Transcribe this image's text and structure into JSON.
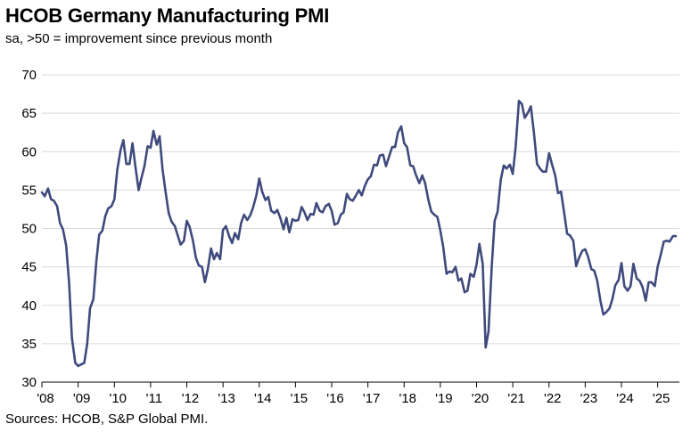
{
  "chart_data": {
    "type": "line",
    "title": "HCOB Germany Manufacturing PMI",
    "subtitle": "sa, >50 = improvement since previous month",
    "source": "Sources: HCOB, S&P Global PMI.",
    "ylim": [
      30,
      70
    ],
    "yticks": [
      30,
      35,
      40,
      45,
      50,
      55,
      60,
      65,
      70
    ],
    "xlim": [
      2008.0,
      2025.6
    ],
    "xticks": [
      {
        "value": 2008,
        "label": "'08"
      },
      {
        "value": 2009,
        "label": "'09"
      },
      {
        "value": 2010,
        "label": "'10"
      },
      {
        "value": 2011,
        "label": "'11"
      },
      {
        "value": 2012,
        "label": "'12"
      },
      {
        "value": 2013,
        "label": "'13"
      },
      {
        "value": 2014,
        "label": "'14"
      },
      {
        "value": 2015,
        "label": "'15"
      },
      {
        "value": 2016,
        "label": "'16"
      },
      {
        "value": 2017,
        "label": "'17"
      },
      {
        "value": 2018,
        "label": "'18"
      },
      {
        "value": 2019,
        "label": "'19"
      },
      {
        "value": 2020,
        "label": "'20"
      },
      {
        "value": 2021,
        "label": "'21"
      },
      {
        "value": 2022,
        "label": "'22"
      },
      {
        "value": 2023,
        "label": "'23"
      },
      {
        "value": 2024,
        "label": "'24"
      },
      {
        "value": 2025,
        "label": "'25"
      }
    ],
    "grid": true,
    "color": "#3f4a7d",
    "series": [
      {
        "x": [
          2008.0,
          2008.08,
          2008.17,
          2008.25,
          2008.33,
          2008.42,
          2008.5,
          2008.58,
          2008.67,
          2008.75,
          2008.83,
          2008.92,
          2009.0,
          2009.08,
          2009.17,
          2009.25,
          2009.33,
          2009.42,
          2009.5,
          2009.58,
          2009.67,
          2009.75,
          2009.83,
          2009.92,
          2010.0,
          2010.08,
          2010.17,
          2010.25,
          2010.33,
          2010.42,
          2010.5,
          2010.58,
          2010.67,
          2010.75,
          2010.83,
          2010.92,
          2011.0,
          2011.08,
          2011.17,
          2011.25,
          2011.33,
          2011.42,
          2011.5,
          2011.58,
          2011.67,
          2011.75,
          2011.83,
          2011.92,
          2012.0,
          2012.08,
          2012.17,
          2012.25,
          2012.33,
          2012.42,
          2012.5,
          2012.58,
          2012.67,
          2012.75,
          2012.83,
          2012.92,
          2013.0,
          2013.08,
          2013.17,
          2013.25,
          2013.33,
          2013.42,
          2013.5,
          2013.58,
          2013.67,
          2013.75,
          2013.83,
          2013.92,
          2014.0,
          2014.08,
          2014.17,
          2014.25,
          2014.33,
          2014.42,
          2014.5,
          2014.58,
          2014.67,
          2014.75,
          2014.83,
          2014.92,
          2015.0,
          2015.08,
          2015.17,
          2015.25,
          2015.33,
          2015.42,
          2015.5,
          2015.58,
          2015.67,
          2015.75,
          2015.83,
          2015.92,
          2016.0,
          2016.08,
          2016.17,
          2016.25,
          2016.33,
          2016.42,
          2016.5,
          2016.58,
          2016.67,
          2016.75,
          2016.83,
          2016.92,
          2017.0,
          2017.08,
          2017.17,
          2017.25,
          2017.33,
          2017.42,
          2017.5,
          2017.58,
          2017.67,
          2017.75,
          2017.83,
          2017.92,
          2018.0,
          2018.08,
          2018.17,
          2018.25,
          2018.33,
          2018.42,
          2018.5,
          2018.58,
          2018.67,
          2018.75,
          2018.83,
          2018.92,
          2019.0,
          2019.08,
          2019.17,
          2019.25,
          2019.33,
          2019.42,
          2019.5,
          2019.58,
          2019.67,
          2019.75,
          2019.83,
          2019.92,
          2020.0,
          2020.08,
          2020.17,
          2020.25,
          2020.33,
          2020.42,
          2020.5,
          2020.58,
          2020.67,
          2020.75,
          2020.83,
          2020.92,
          2021.0,
          2021.08,
          2021.17,
          2021.25,
          2021.33,
          2021.42,
          2021.5,
          2021.58,
          2021.67,
          2021.75,
          2021.83,
          2021.92,
          2022.0,
          2022.08,
          2022.17,
          2022.25,
          2022.33,
          2022.42,
          2022.5,
          2022.58,
          2022.67,
          2022.75,
          2022.83,
          2022.92,
          2023.0,
          2023.08,
          2023.17,
          2023.25,
          2023.33,
          2023.42,
          2023.5,
          2023.58,
          2023.67,
          2023.75,
          2023.83,
          2023.92,
          2024.0,
          2024.08,
          2024.17,
          2024.25,
          2024.33,
          2024.42,
          2024.5,
          2024.58,
          2024.67,
          2024.75,
          2024.83,
          2024.92,
          2025.0,
          2025.08,
          2025.17,
          2025.25,
          2025.33,
          2025.42,
          2025.5
        ],
        "values": [
          54.7,
          54.2,
          55.2,
          53.8,
          53.6,
          52.9,
          50.7,
          49.9,
          47.8,
          42.9,
          35.7,
          32.5,
          32.1,
          32.3,
          32.5,
          35.0,
          39.6,
          40.8,
          45.5,
          49.2,
          49.7,
          51.6,
          52.6,
          52.9,
          53.8,
          57.6,
          60.2,
          61.5,
          58.4,
          58.4,
          61.1,
          58.1,
          55.0,
          56.6,
          58.1,
          60.7,
          60.5,
          62.7,
          60.9,
          62.0,
          57.7,
          54.6,
          52.0,
          50.9,
          50.3,
          49.1,
          47.9,
          48.4,
          51.0,
          50.2,
          48.4,
          46.2,
          45.2,
          45.0,
          43.0,
          44.7,
          47.4,
          46.0,
          46.8,
          46.0,
          49.8,
          50.3,
          49.0,
          48.1,
          49.4,
          48.6,
          50.7,
          51.8,
          51.1,
          51.7,
          52.7,
          54.3,
          56.5,
          54.8,
          53.7,
          54.1,
          52.3,
          52.0,
          52.4,
          51.4,
          49.9,
          51.4,
          49.5,
          51.2,
          51.0,
          51.1,
          52.8,
          52.1,
          51.1,
          51.9,
          51.8,
          53.3,
          52.3,
          52.1,
          52.9,
          53.2,
          52.3,
          50.5,
          50.7,
          51.8,
          52.1,
          54.5,
          53.8,
          53.6,
          54.3,
          55.0,
          54.3,
          55.6,
          56.4,
          56.8,
          58.3,
          58.2,
          59.5,
          59.6,
          58.1,
          59.3,
          60.6,
          60.6,
          62.5,
          63.3,
          61.1,
          60.6,
          58.2,
          58.1,
          56.9,
          55.9,
          56.9,
          55.9,
          53.7,
          52.2,
          51.8,
          51.5,
          49.7,
          47.6,
          44.1,
          44.4,
          44.3,
          45.0,
          43.2,
          43.5,
          41.7,
          41.9,
          44.1,
          43.7,
          45.3,
          48.0,
          45.4,
          34.5,
          36.6,
          45.2,
          51.0,
          52.2,
          56.4,
          58.2,
          57.8,
          58.3,
          57.1,
          60.7,
          66.6,
          66.2,
          64.4,
          65.1,
          65.9,
          62.6,
          58.4,
          57.8,
          57.4,
          57.4,
          59.8,
          58.4,
          56.9,
          54.6,
          54.8,
          52.0,
          49.3,
          49.1,
          48.4,
          45.1,
          46.2,
          47.1,
          47.3,
          46.3,
          44.7,
          44.5,
          43.2,
          40.6,
          38.8,
          39.1,
          39.6,
          40.8,
          42.6,
          43.3,
          45.5,
          42.5,
          41.9,
          42.5,
          45.4,
          43.5,
          43.2,
          42.4,
          40.6,
          43.0,
          43.0,
          42.5,
          45.0,
          46.5,
          48.3,
          48.4,
          48.3,
          49.0,
          49.0
        ]
      }
    ]
  }
}
